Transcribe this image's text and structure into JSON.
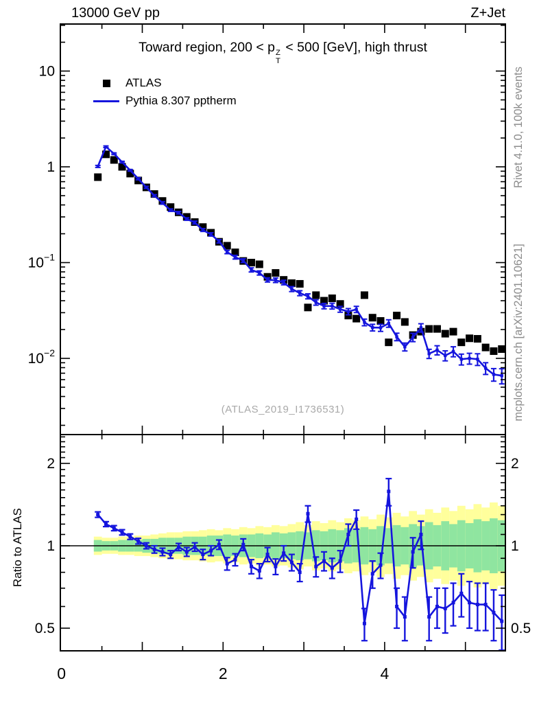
{
  "header": {
    "left": "13000 GeV pp",
    "right": "Z+Jet"
  },
  "panel_title": {
    "prefix": "Toward region, 200 < p",
    "sup": "Z",
    "sub": "T",
    "suffix": " < 500 [GeV], high thrust"
  },
  "legend": [
    {
      "label": "ATLAS",
      "marker": "black-square",
      "color": "#000000"
    },
    {
      "label": "Pythia 8.307 pptherm",
      "marker": "blue-line",
      "color": "#1515dd"
    }
  ],
  "watermark": "(ATLAS_2019_I1736531)",
  "side_notes": {
    "top": "Rivet 4.1.0,  100k events",
    "bottom": "mcplots.cern.ch [arXiv:2401.10621]"
  },
  "ratio_ylabel": "Ratio to ATLAS",
  "colors": {
    "mc_blue": "#1515dd",
    "data_black": "#000000",
    "band_yellow": "#ffff9c",
    "band_green": "#8fe5a0",
    "frame": "#000000",
    "gray_text": "#8c8c8c"
  },
  "chart_data": [
    {
      "type": "scatter",
      "title": "Toward region, 200 < pT^Z < 500 [GeV], high thrust",
      "x_axis": {
        "min": 0,
        "max": 5.51,
        "ticks": [
          {
            "v": 0,
            "label": "0"
          },
          {
            "v": 2,
            "label": "2"
          },
          {
            "v": 4,
            "label": "4"
          }
        ]
      },
      "y_axis": {
        "scale": "log10",
        "min": 0.0016,
        "max": 31,
        "ticks": [
          {
            "v": 10,
            "base": "10"
          },
          {
            "v": 1,
            "base": "1"
          },
          {
            "v": 0.1,
            "base": "10",
            "exp": "−1"
          },
          {
            "v": 0.01,
            "base": "10",
            "exp": "−2"
          }
        ]
      },
      "x": [
        0.45,
        0.55,
        0.65,
        0.75,
        0.85,
        0.95,
        1.05,
        1.15,
        1.25,
        1.35,
        1.45,
        1.55,
        1.65,
        1.75,
        1.85,
        1.95,
        2.05,
        2.15,
        2.25,
        2.35,
        2.45,
        2.55,
        2.65,
        2.75,
        2.85,
        2.95,
        3.05,
        3.15,
        3.25,
        3.35,
        3.45,
        3.55,
        3.65,
        3.75,
        3.85,
        3.95,
        4.05,
        4.15,
        4.25,
        4.35,
        4.45,
        4.55,
        4.65,
        4.75,
        4.85,
        4.95,
        5.05,
        5.15,
        5.25,
        5.35,
        5.45
      ],
      "series": [
        {
          "name": "ATLAS",
          "style": "black-squares",
          "values": [
            0.78,
            1.35,
            1.18,
            1.0,
            0.85,
            0.72,
            0.61,
            0.52,
            0.44,
            0.38,
            0.335,
            0.3,
            0.265,
            0.235,
            0.205,
            0.165,
            0.15,
            0.128,
            0.104,
            0.1,
            0.096,
            0.071,
            0.078,
            0.066,
            0.061,
            0.06,
            0.034,
            0.0457,
            0.04,
            0.0424,
            0.037,
            0.028,
            0.026,
            0.0457,
            0.0266,
            0.0246,
            0.0147,
            0.028,
            0.024,
            0.0175,
            0.019,
            0.0203,
            0.0203,
            0.0181,
            0.019,
            0.0147,
            0.0162,
            0.016,
            0.013,
            0.0119,
            0.0125
          ]
        },
        {
          "name": "Pythia 8.307 pptherm",
          "style": "blue-line",
          "values": [
            1.01,
            1.62,
            1.37,
            1.12,
            0.92,
            0.75,
            0.61,
            0.5,
            0.42,
            0.353,
            0.332,
            0.285,
            0.262,
            0.219,
            0.197,
            0.167,
            0.129,
            0.114,
            0.105,
            0.084,
            0.078,
            0.066,
            0.0655,
            0.062,
            0.053,
            0.048,
            0.0445,
            0.0384,
            0.0352,
            0.0352,
            0.0326,
            0.0308,
            0.0325,
            0.0238,
            0.021,
            0.0209,
            0.0232,
            0.0168,
            0.0132,
            0.0166,
            0.0209,
            0.0112,
            0.0122,
            0.0107,
            0.0118,
            0.0098,
            0.01,
            0.0098,
            0.0079,
            0.0068,
            0.0066
          ],
          "err_frac": [
            0.025,
            0.02,
            0.02,
            0.02,
            0.02,
            0.025,
            0.025,
            0.025,
            0.03,
            0.03,
            0.03,
            0.03,
            0.035,
            0.035,
            0.04,
            0.04,
            0.04,
            0.045,
            0.045,
            0.05,
            0.05,
            0.05,
            0.055,
            0.055,
            0.06,
            0.06,
            0.06,
            0.065,
            0.065,
            0.07,
            0.07,
            0.075,
            0.075,
            0.08,
            0.08,
            0.085,
            0.09,
            0.09,
            0.095,
            0.1,
            0.1,
            0.11,
            0.11,
            0.12,
            0.12,
            0.13,
            0.13,
            0.14,
            0.14,
            0.15,
            0.18
          ]
        }
      ]
    },
    {
      "type": "ratio",
      "ylabel": "Ratio to ATLAS",
      "y_axis": {
        "scale": "log2",
        "min": 0.413,
        "max": 2.55,
        "ticks": [
          {
            "v": 2,
            "label": "2"
          },
          {
            "v": 1,
            "label": "1"
          },
          {
            "v": 0.5,
            "label": "0.5"
          }
        ]
      },
      "refline": 1,
      "bin_width": 0.1,
      "ratio": [
        1.3,
        1.2,
        1.16,
        1.12,
        1.08,
        1.04,
        1.0,
        0.97,
        0.95,
        0.93,
        0.99,
        0.95,
        0.99,
        0.93,
        0.96,
        1.01,
        0.86,
        0.89,
        1.01,
        0.84,
        0.81,
        0.93,
        0.84,
        0.94,
        0.87,
        0.8,
        1.31,
        0.84,
        0.88,
        0.83,
        0.88,
        1.1,
        1.25,
        0.52,
        0.79,
        0.85,
        1.58,
        0.6,
        0.55,
        0.95,
        1.1,
        0.55,
        0.6,
        0.59,
        0.62,
        0.67,
        0.62,
        0.61,
        0.61,
        0.57,
        0.53
      ],
      "ratio_err": [
        0.03,
        0.025,
        0.025,
        0.025,
        0.025,
        0.025,
        0.025,
        0.03,
        0.03,
        0.03,
        0.03,
        0.035,
        0.035,
        0.04,
        0.04,
        0.04,
        0.045,
        0.045,
        0.05,
        0.05,
        0.05,
        0.055,
        0.055,
        0.06,
        0.06,
        0.06,
        0.09,
        0.07,
        0.07,
        0.07,
        0.08,
        0.1,
        0.1,
        0.07,
        0.09,
        0.09,
        0.18,
        0.1,
        0.1,
        0.12,
        0.13,
        0.1,
        0.1,
        0.11,
        0.11,
        0.12,
        0.12,
        0.12,
        0.12,
        0.12,
        0.13
      ],
      "band_yellow_halfwidth": [
        0.08,
        0.07,
        0.07,
        0.08,
        0.08,
        0.09,
        0.09,
        0.1,
        0.11,
        0.12,
        0.12,
        0.13,
        0.13,
        0.14,
        0.15,
        0.14,
        0.16,
        0.15,
        0.17,
        0.16,
        0.18,
        0.17,
        0.19,
        0.18,
        0.2,
        0.22,
        0.19,
        0.23,
        0.21,
        0.24,
        0.22,
        0.26,
        0.24,
        0.28,
        0.25,
        0.3,
        0.27,
        0.32,
        0.28,
        0.34,
        0.3,
        0.36,
        0.32,
        0.38,
        0.34,
        0.4,
        0.36,
        0.42,
        0.38,
        0.44,
        0.4
      ],
      "band_green_halfwidth": [
        0.05,
        0.04,
        0.04,
        0.05,
        0.05,
        0.05,
        0.06,
        0.06,
        0.07,
        0.07,
        0.07,
        0.08,
        0.08,
        0.08,
        0.09,
        0.09,
        0.1,
        0.09,
        0.1,
        0.1,
        0.11,
        0.1,
        0.12,
        0.11,
        0.12,
        0.13,
        0.12,
        0.14,
        0.13,
        0.15,
        0.14,
        0.16,
        0.15,
        0.17,
        0.15,
        0.18,
        0.16,
        0.19,
        0.17,
        0.2,
        0.18,
        0.22,
        0.19,
        0.23,
        0.2,
        0.24,
        0.21,
        0.25,
        0.23,
        0.26,
        0.24
      ]
    }
  ]
}
